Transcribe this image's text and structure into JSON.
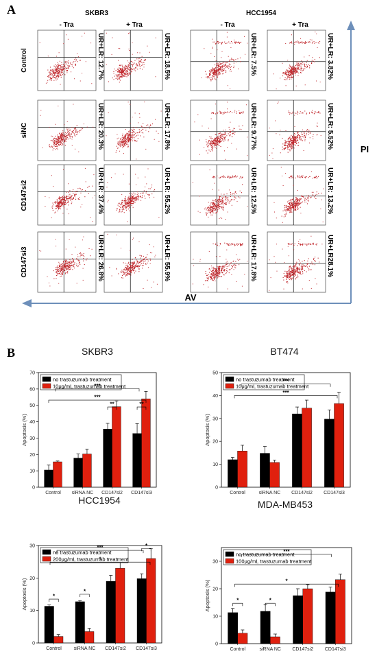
{
  "panel_a": {
    "letter": "A",
    "groups": [
      {
        "name": "SKBR3",
        "conditions": [
          "- Tra",
          "+ Tra"
        ]
      },
      {
        "name": "HCC1954",
        "conditions": [
          "- Tra",
          "+ Tra"
        ]
      }
    ],
    "rows": [
      "Control",
      "siNC",
      "CD147si2",
      "CD147si3"
    ],
    "ur_lr_labels": [
      [
        "UR+LR: 12.7%",
        "UR+LR: 18.5%",
        "UR+LR: 7.5%",
        "UR+LR: 3.82%"
      ],
      [
        "UR+LR: 20.3%",
        "UR+LR: 17.8%",
        "UR+LR: 9.77%",
        "UR+LR: 5.52%"
      ],
      [
        "UR+LR: 37.4%",
        "UR+LR: 55.2%",
        "UR+LR: 12.5%",
        "UR+LR: 13.2%"
      ],
      [
        "UR+LR: 26.8%",
        "UR+LR: 55.9%",
        "UR+LR: 17.8%",
        "UR+LR28.1%"
      ]
    ],
    "x_axis_label": "AV",
    "y_axis_label": "PI",
    "dot_color": "#c0262b",
    "arrow_color": "#6d8fba"
  },
  "panel_b": {
    "letter": "B"
  },
  "colors": {
    "untreated": "#000000",
    "treated": "#e0200e"
  },
  "chart_data": [
    {
      "type": "bar",
      "title": "SKBR3",
      "ylabel": "Apoptosis (%)",
      "ylim": [
        0,
        70
      ],
      "yticks": [
        0,
        10,
        20,
        30,
        40,
        50,
        60,
        70
      ],
      "categories": [
        "Control",
        "siRNA NC",
        "CD147si2",
        "CD147si3"
      ],
      "series": [
        {
          "name": "no trastuzumab treatment",
          "values": [
            10.5,
            17.8,
            35.5,
            32.8
          ],
          "errors": [
            3.0,
            2.5,
            3.5,
            6.0
          ]
        },
        {
          "name": "10μg/mL  trastuzumab treatment",
          "values": [
            15.5,
            20.3,
            49.2,
            54.0
          ],
          "errors": [
            0.5,
            3.0,
            3.5,
            4.5
          ]
        }
      ],
      "significance": [
        "***",
        "***",
        "**",
        "**"
      ],
      "legend": "top-left"
    },
    {
      "type": "bar",
      "title": "BT474",
      "ylabel": "Apoptosis (%)",
      "ylim": [
        0,
        50
      ],
      "yticks": [
        0,
        10,
        20,
        30,
        40,
        50
      ],
      "categories": [
        "Control",
        "siRNA NC",
        "CD147si2",
        "CD147si3"
      ],
      "series": [
        {
          "name": "no trastuzumab treatment",
          "values": [
            12.0,
            14.8,
            32.0,
            29.7
          ],
          "errors": [
            1.0,
            3.0,
            3.0,
            4.0
          ]
        },
        {
          "name": "10μg/mL  trastuzumab treatment",
          "values": [
            15.8,
            10.8,
            34.5,
            36.5
          ],
          "errors": [
            2.5,
            1.0,
            3.5,
            5.0
          ]
        }
      ],
      "significance": [
        "***",
        "***"
      ],
      "legend": "top-left"
    },
    {
      "type": "bar",
      "title": "HCC1954",
      "ylabel": "Apoptosis (%)",
      "ylim": [
        0,
        30
      ],
      "yticks": [
        0,
        10,
        20,
        30
      ],
      "categories": [
        "Control",
        "siRNA NC",
        "CD147si2",
        "CD147si3"
      ],
      "series": [
        {
          "name": "no trastuzumab treatment",
          "values": [
            11.3,
            12.7,
            19.0,
            19.8
          ],
          "errors": [
            0.4,
            0.3,
            1.8,
            1.5
          ]
        },
        {
          "name": "200μg/mL  trastuzumab treatment",
          "values": [
            2.0,
            3.5,
            23.0,
            26.0
          ],
          "errors": [
            0.6,
            1.0,
            2.5,
            3.0
          ]
        }
      ],
      "significance": [
        "***",
        "*",
        "*",
        "*",
        "*"
      ],
      "legend": "top-left"
    },
    {
      "type": "bar",
      "title": "MDA-MB453",
      "ylabel": "Apoptosis (%)",
      "ylim": [
        0,
        35
      ],
      "yticks": [
        0,
        10,
        20,
        30
      ],
      "categories": [
        "Control",
        "siRNA NC",
        "CD147si2",
        "CD147si3"
      ],
      "series": [
        {
          "name": "no trastuzumab treatment",
          "values": [
            11.3,
            11.8,
            17.5,
            18.8
          ],
          "errors": [
            1.5,
            2.5,
            2.5,
            1.8
          ]
        },
        {
          "name": "100μg/mL  trastuzumab treatment",
          "values": [
            3.8,
            2.5,
            20.0,
            23.3
          ],
          "errors": [
            1.2,
            1.0,
            1.5,
            2.0
          ]
        }
      ],
      "significance": [
        "***",
        "*",
        "*",
        "*"
      ],
      "legend": "top-left"
    }
  ]
}
